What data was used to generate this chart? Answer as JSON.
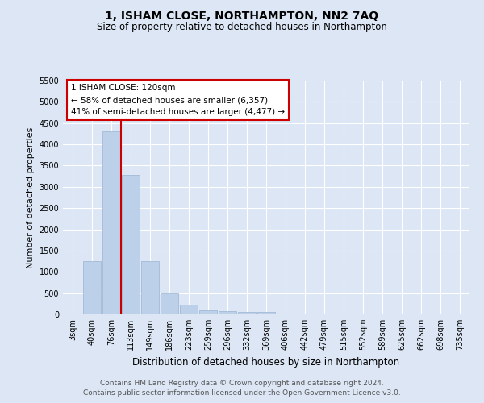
{
  "title": "1, ISHAM CLOSE, NORTHAMPTON, NN2 7AQ",
  "subtitle": "Size of property relative to detached houses in Northampton",
  "xlabel": "Distribution of detached houses by size in Northampton",
  "ylabel": "Number of detached properties",
  "footer_line1": "Contains HM Land Registry data © Crown copyright and database right 2024.",
  "footer_line2": "Contains public sector information licensed under the Open Government Licence v3.0.",
  "annotation_title": "1 ISHAM CLOSE: 120sqm",
  "annotation_line1": "← 58% of detached houses are smaller (6,357)",
  "annotation_line2": "41% of semi-detached houses are larger (4,477) →",
  "bar_labels": [
    "3sqm",
    "40sqm",
    "76sqm",
    "113sqm",
    "149sqm",
    "186sqm",
    "223sqm",
    "259sqm",
    "296sqm",
    "332sqm",
    "369sqm",
    "406sqm",
    "442sqm",
    "479sqm",
    "515sqm",
    "552sqm",
    "589sqm",
    "625sqm",
    "662sqm",
    "698sqm",
    "735sqm"
  ],
  "bar_values": [
    0,
    1250,
    4300,
    3280,
    1260,
    490,
    220,
    100,
    80,
    55,
    50,
    0,
    0,
    0,
    0,
    0,
    0,
    0,
    0,
    0,
    0
  ],
  "bar_color": "#bdd0e9",
  "bar_edge_color": "#9ab3d0",
  "vline_color": "#cc0000",
  "vline_x_index": 3,
  "ylim": [
    0,
    5500
  ],
  "yticks": [
    0,
    500,
    1000,
    1500,
    2000,
    2500,
    3000,
    3500,
    4000,
    4500,
    5000,
    5500
  ],
  "bg_color": "#dce6f5",
  "plot_bg_color": "#dce6f5",
  "grid_color": "#ffffff",
  "title_fontsize": 10,
  "subtitle_fontsize": 8.5,
  "ylabel_fontsize": 8,
  "xlabel_fontsize": 8.5,
  "tick_fontsize": 7,
  "annotation_box_color": "#ffffff",
  "annotation_border_color": "#cc0000",
  "annotation_fontsize": 7.5,
  "footer_fontsize": 6.5,
  "footer_color": "#555555"
}
